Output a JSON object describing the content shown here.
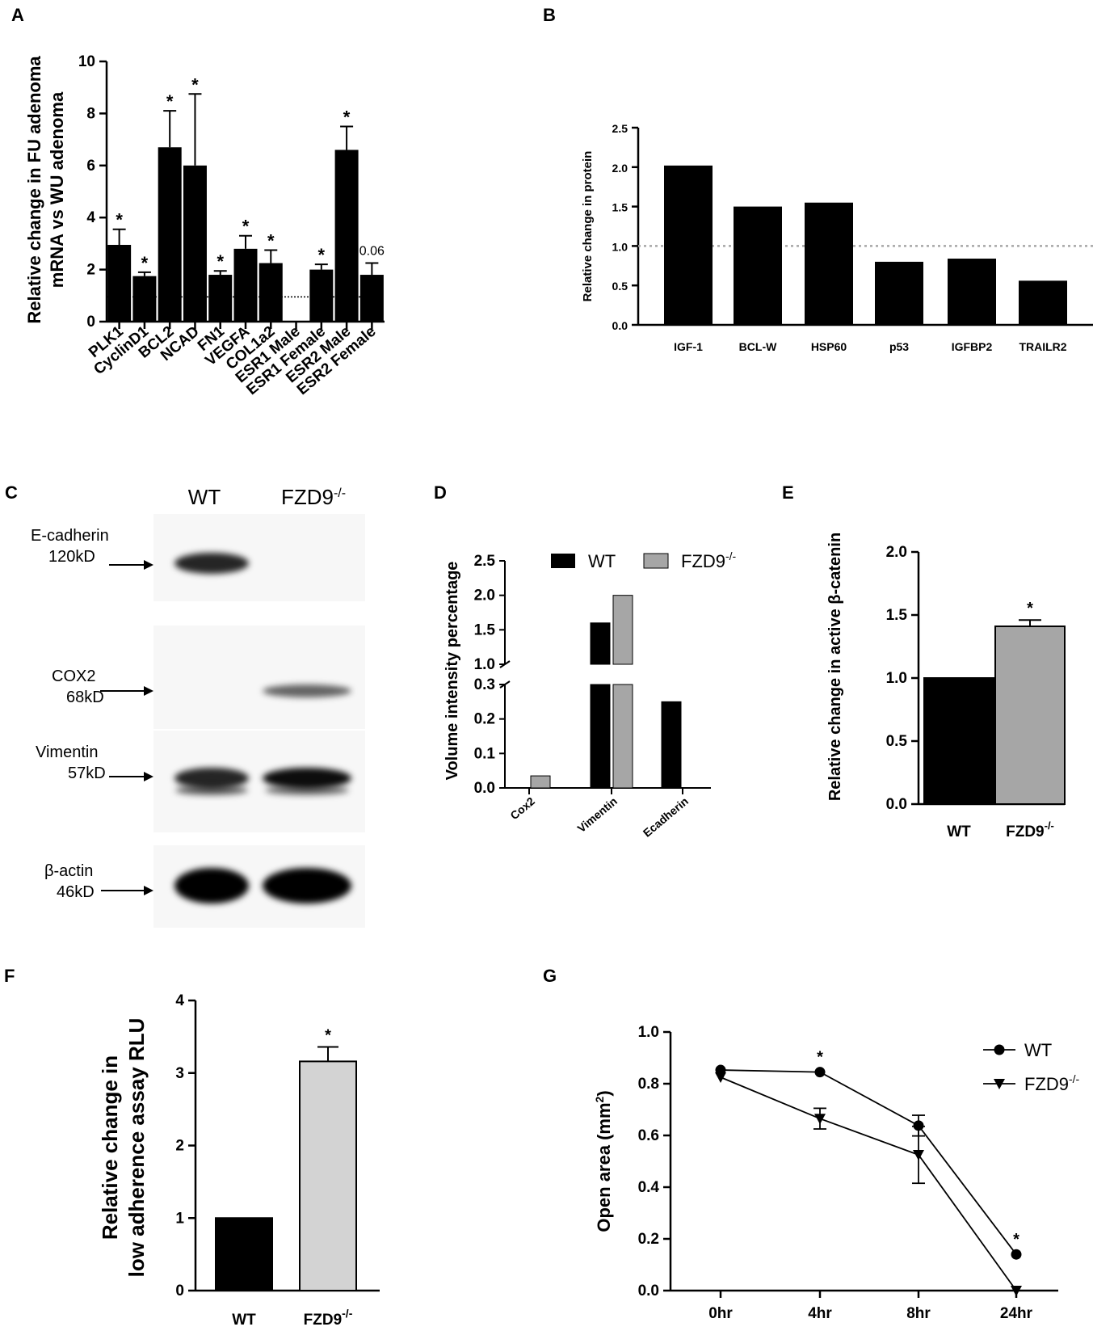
{
  "panels": {
    "A": {
      "letter": "A"
    },
    "B": {
      "letter": "B"
    },
    "C": {
      "letter": "C"
    },
    "D": {
      "letter": "D"
    },
    "E": {
      "letter": "E"
    },
    "F": {
      "letter": "F"
    },
    "G": {
      "letter": "G"
    }
  },
  "blot": {
    "lanes": [
      "WT",
      "FZD9"
    ],
    "lane_sup": "-/-",
    "bands": [
      {
        "name": "E-cadherin",
        "size": "120kD",
        "wt": 0.85,
        "ko": 0.0
      },
      {
        "name": "COX2",
        "size": "68kD",
        "wt": 0.0,
        "ko": 0.6
      },
      {
        "name": "Vimentin",
        "size": "57kD",
        "wt": 0.85,
        "ko": 0.95
      },
      {
        "name": "β-actin",
        "size": "46kD",
        "wt": 1.0,
        "ko": 1.0
      }
    ]
  },
  "colors": {
    "black": "#000000",
    "gray": "#a6a6a6",
    "light_gray": "#d3d3d3",
    "ref_gray": "#a6a6a6"
  },
  "chart_data": [
    {
      "panel": "A",
      "type": "bar",
      "ylabel": [
        "Relative change in FU adenoma",
        "mRNA vs WU adenoma"
      ],
      "ylim": [
        0,
        10
      ],
      "yticks": [
        "0",
        "2",
        "4",
        "6",
        "8",
        "10"
      ],
      "categories": [
        "PLK1",
        "CyclinD1",
        "BCL2",
        "NCAD",
        "FN1",
        "VEGFA",
        "COL1a2",
        "ESR1 Male",
        "ESR1 Female",
        "ESR2 Male",
        "ESR2 Female"
      ],
      "values": [
        2.95,
        1.75,
        6.7,
        6.0,
        1.8,
        2.8,
        2.25,
        0,
        2.0,
        6.6,
        1.8
      ],
      "errors": [
        0.6,
        0.15,
        1.4,
        2.75,
        0.15,
        0.5,
        0.5,
        0,
        0.2,
        0.9,
        0.45
      ],
      "annotations": [
        "*",
        "*",
        "*",
        "*",
        "*",
        "*",
        "*",
        "",
        "*",
        "*",
        "0.06"
      ],
      "reference_line": 0.95
    },
    {
      "panel": "B",
      "type": "bar",
      "ylabel": "Relative change in protein",
      "ylim": [
        0,
        2.5
      ],
      "yticks": [
        "0.0",
        "0.5",
        "1.0",
        "1.5",
        "2.0",
        "2.5"
      ],
      "categories": [
        "IGF-1",
        "BCL-W",
        "HSP60",
        "p53",
        "IGFBP2",
        "TRAILR2"
      ],
      "values": [
        2.02,
        1.5,
        1.55,
        0.8,
        0.84,
        0.56
      ],
      "reference_line": 1.0
    },
    {
      "panel": "D",
      "type": "bar",
      "ylabel": "Volume intensity percentage",
      "broken_axis": {
        "lower": [
          0,
          0.3
        ],
        "upper": [
          1.0,
          2.5
        ]
      },
      "yticks_lower": [
        "0.0",
        "0.1",
        "0.2",
        "0.3"
      ],
      "yticks_upper": [
        "1.0",
        "1.5",
        "2.0",
        "2.5"
      ],
      "categories": [
        "Cox2",
        "Vimentin",
        "Ecadherin"
      ],
      "series": [
        {
          "name": "WT",
          "values": [
            0,
            1.6,
            0.25
          ]
        },
        {
          "name": "FZD9",
          "name_sup": "-/-",
          "values": [
            0.035,
            2.0,
            0
          ]
        }
      ]
    },
    {
      "panel": "E",
      "type": "bar",
      "ylabel": "Relative change in active β-catenin",
      "ylim": [
        0,
        2.0
      ],
      "yticks": [
        "0.0",
        "0.5",
        "1.0",
        "1.5",
        "2.0"
      ],
      "categories": [
        "WT",
        "FZD9"
      ],
      "category_sup": [
        "",
        "-/-"
      ],
      "values": [
        1.0,
        1.41
      ],
      "errors": [
        0,
        0.05
      ],
      "annotations": [
        "",
        "*"
      ]
    },
    {
      "panel": "F",
      "type": "bar",
      "ylabel": [
        "Relative change in",
        "low adherence assay RLU"
      ],
      "ylim": [
        0,
        4
      ],
      "yticks": [
        "0",
        "1",
        "2",
        "3",
        "4"
      ],
      "categories": [
        "WT",
        "FZD9"
      ],
      "category_sup": [
        "",
        "-/-"
      ],
      "values": [
        1.0,
        3.16
      ],
      "errors": [
        0,
        0.2
      ],
      "annotations": [
        "",
        "*"
      ]
    },
    {
      "panel": "G",
      "type": "line",
      "ylabel": "Open area (mm",
      "ylabel_sup": "2",
      "ylabel_end": ")",
      "ylim": [
        0,
        1.0
      ],
      "yticks": [
        "0.0",
        "0.2",
        "0.4",
        "0.6",
        "0.8",
        "1.0"
      ],
      "categories": [
        "0hr",
        "4hr",
        "8hr",
        "24hr"
      ],
      "series": [
        {
          "name": "WT",
          "values": [
            0.853,
            0.845,
            0.638,
            0.14
          ],
          "errors": [
            0,
            0,
            0.04,
            0
          ]
        },
        {
          "name": "FZD9",
          "name_sup": "-/-",
          "values": [
            0.825,
            0.665,
            0.525,
            0.0
          ],
          "errors": [
            0,
            0.04,
            0.11,
            0
          ]
        }
      ],
      "annotations": [
        "",
        "*",
        "",
        "*"
      ]
    }
  ]
}
